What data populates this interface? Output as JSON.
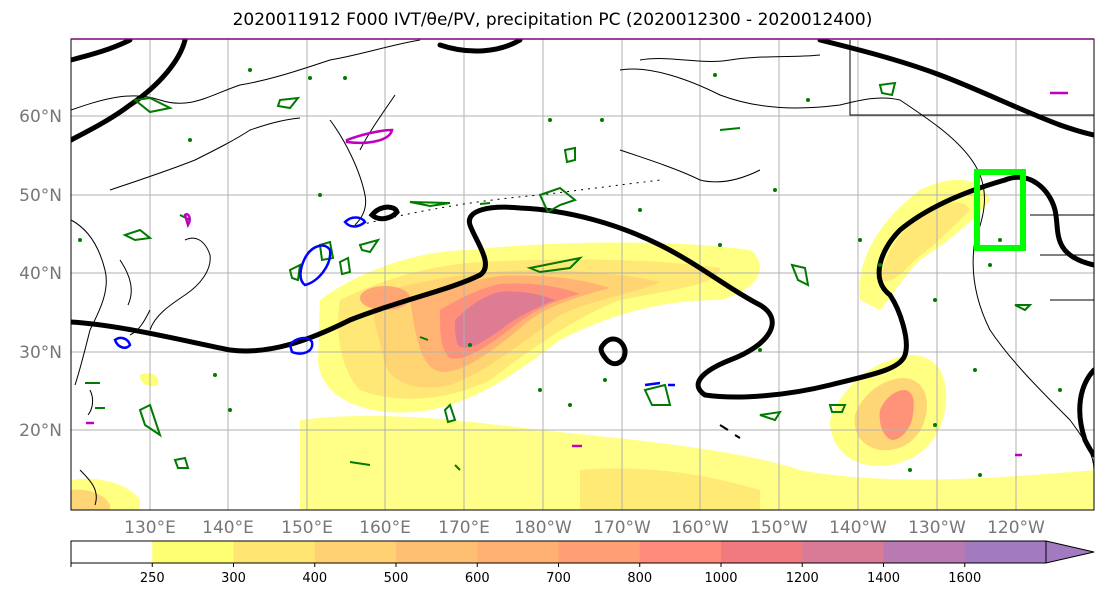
{
  "title": "2020011912 F000 IVT/θe/PV, precipitation PC (2020012300 - 2020012400)",
  "latitude_labels": [
    "60°N",
    "50°N",
    "40°N",
    "30°N",
    "20°N"
  ],
  "longitude_labels": [
    "130°E",
    "140°E",
    "150°E",
    "160°E",
    "170°E",
    "180°W",
    "170°W",
    "160°W",
    "150°W",
    "140°W",
    "130°W",
    "120°W"
  ],
  "colorbar": {
    "ticks": [
      "250",
      "300",
      "400",
      "500",
      "600",
      "700",
      "800",
      "1000",
      "1200",
      "1400",
      "1600"
    ],
    "colors": [
      "#ffffff",
      "#ffff73",
      "#ffe673",
      "#ffd173",
      "#ffbf73",
      "#ffb073",
      "#ff9f73",
      "#ff8c7a",
      "#f07a80",
      "#d97a96",
      "#b87ab0",
      "#a27abf"
    ]
  },
  "legend_colors": {
    "theta_e_contour": "#000000",
    "pv_contour": "#007a00",
    "pv_negative_contour": "#0000ff",
    "magenta_contour": "#c000c0",
    "target_box": "#00ff00"
  }
}
